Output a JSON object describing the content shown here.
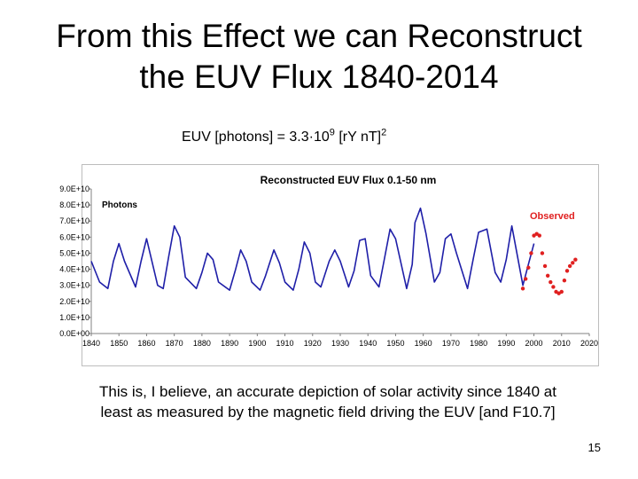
{
  "slide": {
    "title_line1": "From this Effect we can Reconstruct",
    "title_line2": "the EUV Flux 1840-2014",
    "formula": {
      "prefix": "EUV [photons] = 3.3·10",
      "exp1": "9",
      "mid": " [rY nT]",
      "exp2": "2"
    },
    "caption_line1": "This is, I believe, an accurate depiction of solar activity since 1840 at",
    "caption_line2": "least as measured by the magnetic field driving the EUV [and F10.7]",
    "page_number": "15"
  },
  "colors": {
    "reconstructed": "#1f1fa8",
    "observed": "#e02020",
    "grid_axis": "#808080"
  },
  "chart_data": {
    "type": "line",
    "title": "Reconstructed EUV Flux 0.1-50 nm",
    "ylabel_text": "Photons",
    "xlim": [
      1840,
      2020
    ],
    "ylim": [
      0,
      9
    ],
    "x_ticks": [
      "1840",
      "1850",
      "1860",
      "1870",
      "1880",
      "1890",
      "1900",
      "1910",
      "1920",
      "1930",
      "1940",
      "1950",
      "1960",
      "1970",
      "1980",
      "1990",
      "2000",
      "2010",
      "2020"
    ],
    "y_ticks": [
      "0.0E+00",
      "1.0E+10",
      "2.0E+10",
      "3.0E+10",
      "4.0E+10",
      "5.0E+10",
      "6.0E+10",
      "7.0E+10",
      "8.0E+10",
      "9.0E+10"
    ],
    "series": [
      {
        "name": "",
        "style": "line",
        "x": [
          1840,
          1843,
          1846,
          1848,
          1850,
          1852,
          1856,
          1858,
          1860,
          1864,
          1866,
          1868,
          1870,
          1872,
          1874,
          1878,
          1880,
          1882,
          1884,
          1886,
          1890,
          1892,
          1894,
          1896,
          1898,
          1901,
          1903,
          1906,
          1908,
          1910,
          1913,
          1915,
          1917,
          1919,
          1921,
          1923,
          1926,
          1928,
          1930,
          1933,
          1935,
          1937,
          1939,
          1941,
          1944,
          1946,
          1948,
          1950,
          1954,
          1956,
          1957,
          1959,
          1961,
          1964,
          1966,
          1968,
          1970,
          1972,
          1976,
          1978,
          1980,
          1983,
          1986,
          1988,
          1990,
          1992,
          1996,
          1998,
          2000
        ],
        "values": [
          4.5,
          3.2,
          2.8,
          4.5,
          5.6,
          4.5,
          2.9,
          4.5,
          5.9,
          3.0,
          2.8,
          4.8,
          6.7,
          6.0,
          3.5,
          2.8,
          3.8,
          5.0,
          4.6,
          3.2,
          2.7,
          3.9,
          5.2,
          4.5,
          3.2,
          2.7,
          3.6,
          5.2,
          4.4,
          3.2,
          2.7,
          4.0,
          5.7,
          5.0,
          3.2,
          2.9,
          4.5,
          5.2,
          4.5,
          2.9,
          3.9,
          5.8,
          5.9,
          3.6,
          2.9,
          4.7,
          6.5,
          5.9,
          2.8,
          4.3,
          6.9,
          7.8,
          6.2,
          3.2,
          3.8,
          5.9,
          6.2,
          5.0,
          2.8,
          4.6,
          6.3,
          6.5,
          3.8,
          3.2,
          4.6,
          6.7,
          3.0,
          4.3,
          5.6
        ]
      },
      {
        "name": "Observed",
        "style": "markers",
        "x": [
          1996,
          1997,
          1998,
          1999,
          2000,
          2001,
          2002,
          2003,
          2004,
          2005,
          2006,
          2007,
          2008,
          2009,
          2010,
          2011,
          2012,
          2013,
          2014,
          2015
        ],
        "values": [
          2.8,
          3.4,
          4.1,
          5.0,
          6.1,
          6.2,
          6.1,
          5.0,
          4.2,
          3.6,
          3.2,
          2.9,
          2.6,
          2.5,
          2.6,
          3.3,
          3.9,
          4.2,
          4.4,
          4.6
        ]
      }
    ],
    "legend": "inline-label"
  }
}
